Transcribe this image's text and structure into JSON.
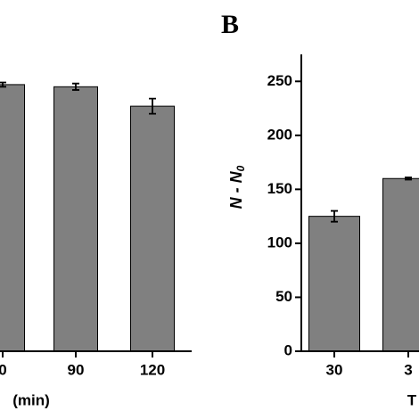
{
  "chart_data": [
    {
      "type": "bar",
      "categories": [
        "0",
        "90",
        "120"
      ],
      "values": [
        247,
        245,
        227
      ],
      "errors": [
        2,
        3,
        7
      ],
      "color": "#808080",
      "ylim": [
        0,
        275
      ],
      "xlabel": "(min)"
    },
    {
      "type": "bar",
      "title": "B",
      "categories": [
        "30",
        "3"
      ],
      "values": [
        125,
        160
      ],
      "errors": [
        5,
        1
      ],
      "color": "#808080",
      "ylim": [
        0,
        275
      ],
      "yticks": [
        0,
        50,
        100,
        150,
        200,
        250
      ],
      "ylabel": [
        "N - N",
        "0"
      ],
      "xlabel": "T"
    }
  ]
}
